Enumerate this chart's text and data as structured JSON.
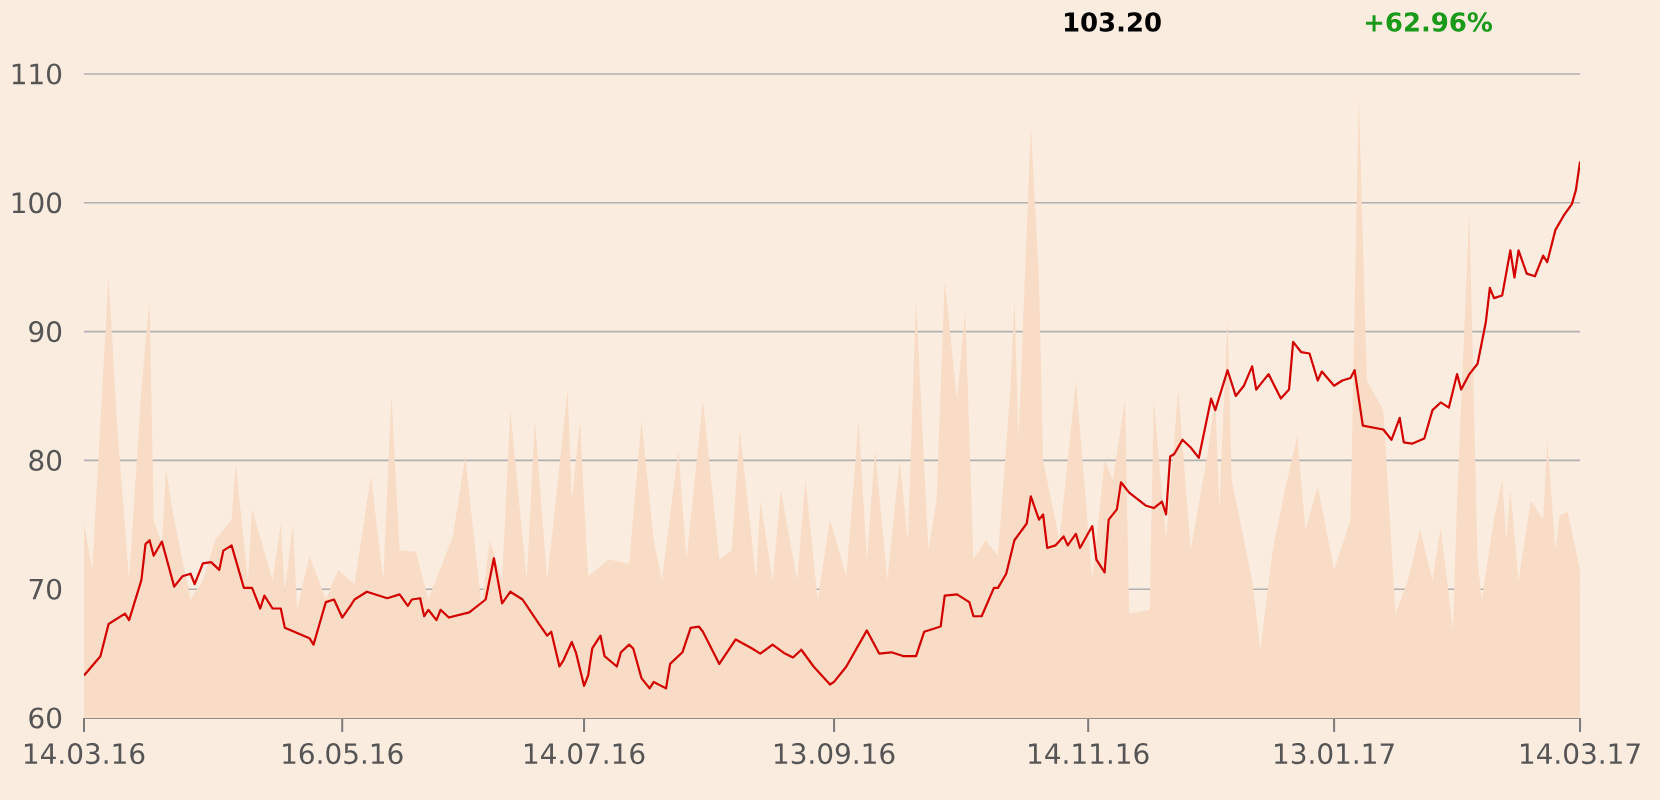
{
  "chart_data": {
    "type": "line",
    "annotations": [
      "103.20",
      "+62.96%"
    ],
    "xlim": [
      "2016-03-14",
      "2017-03-14"
    ],
    "xticks": [
      {
        "value": "2016-03-14",
        "label": "14.03.16"
      },
      {
        "value": "2016-05-16",
        "label": "16.05.16"
      },
      {
        "value": "2016-07-14",
        "label": "14.07.16"
      },
      {
        "value": "2016-09-13",
        "label": "13.09.16"
      },
      {
        "value": "2016-11-14",
        "label": "14.11.16"
      },
      {
        "value": "2017-01-13",
        "label": "13.01.17"
      },
      {
        "value": "2017-03-14",
        "label": "14.03.17"
      }
    ],
    "ylim": [
      60,
      110
    ],
    "yticks": [
      60,
      70,
      80,
      90,
      100,
      110
    ],
    "grid": "y",
    "series": [
      {
        "type": "area",
        "color": "#f8dcc6",
        "x": [
          "2016-03-14",
          "2016-03-16",
          "2016-03-20",
          "2016-03-22",
          "2016-03-25",
          "2016-03-28",
          "2016-03-30",
          "2016-03-31",
          "2016-04-02",
          "2016-04-03",
          "2016-04-05",
          "2016-04-09",
          "2016-04-12",
          "2016-04-15",
          "2016-04-19",
          "2016-04-20",
          "2016-04-23",
          "2016-04-24",
          "2016-04-29",
          "2016-05-01",
          "2016-05-02",
          "2016-05-04",
          "2016-05-05",
          "2016-05-08",
          "2016-05-12",
          "2016-05-15",
          "2016-05-19",
          "2016-05-23",
          "2016-05-26",
          "2016-05-28",
          "2016-05-30",
          "2016-06-03",
          "2016-06-06",
          "2016-06-12",
          "2016-06-15",
          "2016-06-19",
          "2016-06-21",
          "2016-06-24",
          "2016-06-26",
          "2016-06-30",
          "2016-07-02",
          "2016-07-05",
          "2016-07-10",
          "2016-07-11",
          "2016-07-13",
          "2016-07-15",
          "2016-07-20",
          "2016-07-25",
          "2016-07-28",
          "2016-07-31",
          "2016-08-02",
          "2016-08-06",
          "2016-08-08",
          "2016-08-12",
          "2016-08-16",
          "2016-08-19",
          "2016-08-21",
          "2016-08-25",
          "2016-08-26",
          "2016-08-29",
          "2016-08-31",
          "2016-09-04",
          "2016-09-06",
          "2016-09-09",
          "2016-09-12",
          "2016-09-16",
          "2016-09-19",
          "2016-09-21",
          "2016-09-23",
          "2016-09-26",
          "2016-09-29",
          "2016-10-01",
          "2016-10-03",
          "2016-10-06",
          "2016-10-08",
          "2016-10-10",
          "2016-10-13",
          "2016-10-15",
          "2016-10-17",
          "2016-10-20",
          "2016-10-23",
          "2016-10-26",
          "2016-10-27",
          "2016-10-28",
          "2016-10-31",
          "2016-11-02",
          "2016-11-03",
          "2016-11-05",
          "2016-11-07",
          "2016-11-11",
          "2016-11-13",
          "2016-11-15",
          "2016-11-18",
          "2016-11-20",
          "2016-11-23",
          "2016-11-24",
          "2016-11-29",
          "2016-11-30",
          "2016-12-03",
          "2016-12-06",
          "2016-12-09",
          "2016-12-13",
          "2016-12-15",
          "2016-12-16",
          "2016-12-18",
          "2016-12-19",
          "2016-12-24",
          "2016-12-26",
          "2016-12-29",
          "2017-01-01",
          "2017-01-04",
          "2017-01-06",
          "2017-01-09",
          "2017-01-13",
          "2017-01-17",
          "2017-01-19",
          "2017-01-21",
          "2017-01-25",
          "2017-01-28",
          "2017-01-31",
          "2017-02-03",
          "2017-02-06",
          "2017-02-08",
          "2017-02-11",
          "2017-02-12",
          "2017-02-15",
          "2017-02-17",
          "2017-02-18",
          "2017-02-21",
          "2017-02-23",
          "2017-02-24",
          "2017-02-25",
          "2017-02-27",
          "2017-03-02",
          "2017-03-05",
          "2017-03-06",
          "2017-03-08",
          "2017-03-09",
          "2017-03-11",
          "2017-03-14"
        ],
        "values": [
          75.1,
          71.5,
          94.3,
          83.1,
          70.7,
          85.5,
          92.5,
          75.4,
          73.5,
          79.3,
          75.4,
          69.2,
          70.7,
          73.8,
          75.4,
          79.7,
          70.7,
          76.2,
          70.7,
          75.1,
          69.9,
          75.1,
          68.4,
          72.6,
          69.2,
          71.5,
          70.4,
          78.8,
          70.7,
          85.0,
          73.0,
          72.9,
          69.2,
          74.1,
          80.3,
          68.7,
          73.8,
          70.7,
          83.9,
          70.7,
          83.1,
          70.7,
          85.5,
          76.9,
          83.1,
          71.0,
          72.3,
          72.0,
          83.1,
          73.8,
          70.7,
          80.8,
          72.3,
          84.7,
          72.3,
          73.0,
          82.4,
          70.7,
          76.9,
          70.7,
          77.7,
          70.7,
          78.5,
          69.2,
          75.4,
          71.0,
          83.1,
          72.3,
          80.8,
          70.7,
          80.0,
          73.8,
          92.5,
          73.0,
          76.9,
          94.0,
          84.7,
          91.7,
          72.3,
          73.8,
          72.6,
          85.5,
          92.5,
          81.6,
          106.0,
          94.0,
          80.0,
          76.9,
          73.8,
          86.2,
          78.5,
          70.7,
          80.0,
          78.5,
          84.7,
          68.1,
          68.4,
          84.7,
          73.8,
          85.5,
          73.0,
          80.3,
          84.7,
          76.2,
          91.2,
          78.5,
          70.7,
          65.3,
          73.0,
          77.7,
          81.9,
          74.6,
          78.0,
          71.5,
          75.4,
          108.3,
          86.2,
          83.9,
          68.1,
          70.7,
          74.6,
          70.7,
          74.8,
          66.8,
          76.9,
          99.4,
          72.3,
          69.2,
          75.4,
          78.5,
          73.8,
          77.7,
          70.7,
          76.9,
          75.4,
          81.6,
          73.0,
          75.7,
          76.0,
          71.5
        ]
      },
      {
        "color": "#d40000",
        "x": [
          "2016-03-14",
          "2016-03-18",
          "2016-03-20",
          "2016-03-24",
          "2016-03-25",
          "2016-03-28",
          "2016-03-29",
          "2016-03-30",
          "2016-03-31",
          "2016-04-02",
          "2016-04-05",
          "2016-04-07",
          "2016-04-09",
          "2016-04-10",
          "2016-04-12",
          "2016-04-14",
          "2016-04-16",
          "2016-04-17",
          "2016-04-19",
          "2016-04-22",
          "2016-04-24",
          "2016-04-26",
          "2016-04-27",
          "2016-04-29",
          "2016-05-01",
          "2016-05-02",
          "2016-05-08",
          "2016-05-09",
          "2016-05-11",
          "2016-05-12",
          "2016-05-14",
          "2016-05-16",
          "2016-05-18",
          "2016-05-19",
          "2016-05-22",
          "2016-05-27",
          "2016-05-30",
          "2016-06-01",
          "2016-06-02",
          "2016-06-04",
          "2016-06-05",
          "2016-06-06",
          "2016-06-08",
          "2016-06-09",
          "2016-06-11",
          "2016-06-16",
          "2016-06-20",
          "2016-06-22",
          "2016-06-24",
          "2016-06-26",
          "2016-06-29",
          "2016-07-03",
          "2016-07-05",
          "2016-07-06",
          "2016-07-08",
          "2016-07-09",
          "2016-07-11",
          "2016-07-12",
          "2016-07-14",
          "2016-07-15",
          "2016-07-16",
          "2016-07-18",
          "2016-07-19",
          "2016-07-22",
          "2016-07-23",
          "2016-07-25",
          "2016-07-26",
          "2016-07-28",
          "2016-07-30",
          "2016-07-31",
          "2016-08-03",
          "2016-08-04",
          "2016-08-07",
          "2016-08-09",
          "2016-08-11",
          "2016-08-12",
          "2016-08-16",
          "2016-08-20",
          "2016-08-24",
          "2016-08-26",
          "2016-08-29",
          "2016-09-01",
          "2016-09-03",
          "2016-09-05",
          "2016-09-08",
          "2016-09-12",
          "2016-09-13",
          "2016-09-16",
          "2016-09-21",
          "2016-09-24",
          "2016-09-27",
          "2016-09-30",
          "2016-10-03",
          "2016-10-05",
          "2016-10-09",
          "2016-10-10",
          "2016-10-13",
          "2016-10-16",
          "2016-10-17",
          "2016-10-19",
          "2016-10-22",
          "2016-10-23",
          "2016-10-25",
          "2016-10-27",
          "2016-10-30",
          "2016-10-31",
          "2016-11-02",
          "2016-11-03",
          "2016-11-04",
          "2016-11-06",
          "2016-11-08",
          "2016-11-09",
          "2016-11-11",
          "2016-11-12",
          "2016-11-15",
          "2016-11-16",
          "2016-11-18",
          "2016-11-19",
          "2016-11-21",
          "2016-11-22",
          "2016-11-24",
          "2016-11-28",
          "2016-11-30",
          "2016-12-02",
          "2016-12-03",
          "2016-12-04",
          "2016-12-05",
          "2016-12-07",
          "2016-12-09",
          "2016-12-11",
          "2016-12-14",
          "2016-12-15",
          "2016-12-18",
          "2016-12-20",
          "2016-12-22",
          "2016-12-24",
          "2016-12-25",
          "2016-12-28",
          "2016-12-31",
          "2017-01-02",
          "2017-01-03",
          "2017-01-05",
          "2017-01-07",
          "2017-01-09",
          "2017-01-10",
          "2017-01-13",
          "2017-01-15",
          "2017-01-17",
          "2017-01-18",
          "2017-01-20",
          "2017-01-25",
          "2017-01-27",
          "2017-01-29",
          "2017-01-30",
          "2017-02-01",
          "2017-02-04",
          "2017-02-06",
          "2017-02-08",
          "2017-02-10",
          "2017-02-12",
          "2017-02-13",
          "2017-02-15",
          "2017-02-17",
          "2017-02-19",
          "2017-02-20",
          "2017-02-21",
          "2017-02-23",
          "2017-02-25",
          "2017-02-26",
          "2017-02-27",
          "2017-03-01",
          "2017-03-03",
          "2017-03-05",
          "2017-03-06",
          "2017-03-08",
          "2017-03-10",
          "2017-03-12",
          "2017-03-13",
          "2017-03-14"
        ],
        "values": [
          63.3,
          64.8,
          67.3,
          68.1,
          67.6,
          70.7,
          73.5,
          73.8,
          72.6,
          73.7,
          70.2,
          71.0,
          71.2,
          70.4,
          72.0,
          72.1,
          71.5,
          73.0,
          73.4,
          70.1,
          70.1,
          68.5,
          69.5,
          68.5,
          68.5,
          67.0,
          66.2,
          65.7,
          67.9,
          69.0,
          69.2,
          67.8,
          68.7,
          69.2,
          69.8,
          69.3,
          69.6,
          68.7,
          69.2,
          69.3,
          67.9,
          68.4,
          67.6,
          68.4,
          67.8,
          68.2,
          69.2,
          72.4,
          68.9,
          69.8,
          69.2,
          67.3,
          66.4,
          66.7,
          64.0,
          64.5,
          65.9,
          65.1,
          62.5,
          63.3,
          65.4,
          66.4,
          64.8,
          64.0,
          65.1,
          65.7,
          65.4,
          63.1,
          62.3,
          62.8,
          62.3,
          64.2,
          65.1,
          67.0,
          67.1,
          66.7,
          64.2,
          66.1,
          65.4,
          65.0,
          65.7,
          65.0,
          64.7,
          65.3,
          64.0,
          62.6,
          62.8,
          64.0,
          66.8,
          65.0,
          65.1,
          64.8,
          64.8,
          66.7,
          67.1,
          69.5,
          69.6,
          69.0,
          67.9,
          67.9,
          70.1,
          70.1,
          71.2,
          73.8,
          75.1,
          77.2,
          75.4,
          75.8,
          73.2,
          73.4,
          74.1,
          73.4,
          74.3,
          73.2,
          74.9,
          72.3,
          71.3,
          75.4,
          76.2,
          78.3,
          77.5,
          76.5,
          76.3,
          76.8,
          75.8,
          80.3,
          80.5,
          81.6,
          81.0,
          80.2,
          84.8,
          83.9,
          87.0,
          85.0,
          85.8,
          87.3,
          85.5,
          86.7,
          84.8,
          85.5,
          89.2,
          88.4,
          88.3,
          86.2,
          86.9,
          85.8,
          86.2,
          86.4,
          87.0,
          82.7,
          82.4,
          81.6,
          83.3,
          81.4,
          81.3,
          81.7,
          83.9,
          84.5,
          84.1,
          86.7,
          85.5,
          86.7,
          87.5,
          90.7,
          93.4,
          92.6,
          92.8,
          96.3,
          94.2,
          96.3,
          94.5,
          94.3,
          95.9,
          95.4,
          97.9,
          99.0,
          99.9,
          101.0,
          103.2
        ]
      }
    ]
  }
}
